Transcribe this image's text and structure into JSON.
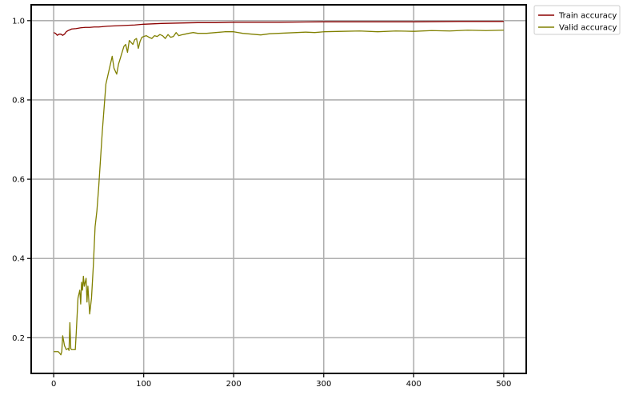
{
  "chart_data": {
    "type": "line",
    "title": "",
    "xlabel": "",
    "ylabel": "",
    "xlim": [
      -25,
      525
    ],
    "ylim": [
      0.11,
      1.04
    ],
    "xticks": [
      0,
      100,
      200,
      300,
      400,
      500
    ],
    "yticks": [
      0.2,
      0.4,
      0.6,
      0.8,
      1.0
    ],
    "xtick_labels": [
      "0",
      "100",
      "200",
      "300",
      "400",
      "500"
    ],
    "ytick_labels": [
      "0.2",
      "0.4",
      "0.6",
      "0.8",
      "1.0"
    ],
    "grid": true,
    "legend_position": "outside-top-right",
    "series": [
      {
        "name": "Train accuracy",
        "color": "#8b0000",
        "x": [
          0,
          2,
          4,
          6,
          8,
          10,
          12,
          14,
          16,
          18,
          20,
          25,
          30,
          35,
          40,
          45,
          50,
          55,
          60,
          70,
          80,
          90,
          100,
          120,
          140,
          160,
          180,
          200,
          250,
          300,
          350,
          400,
          450,
          500
        ],
        "y": [
          0.97,
          0.968,
          0.963,
          0.966,
          0.966,
          0.963,
          0.966,
          0.972,
          0.975,
          0.977,
          0.979,
          0.98,
          0.982,
          0.983,
          0.983,
          0.984,
          0.984,
          0.985,
          0.986,
          0.987,
          0.988,
          0.989,
          0.991,
          0.993,
          0.994,
          0.995,
          0.995,
          0.996,
          0.996,
          0.997,
          0.997,
          0.997,
          0.998,
          0.998
        ]
      },
      {
        "name": "Valid accuracy",
        "color": "#808000",
        "x": [
          0,
          5,
          7,
          8,
          9,
          10,
          12,
          14,
          16,
          17,
          18,
          19,
          20,
          22,
          24,
          25,
          27,
          28,
          29,
          30,
          31,
          32,
          33,
          34,
          35,
          36,
          37,
          38,
          40,
          42,
          44,
          46,
          48,
          50,
          52,
          54,
          56,
          58,
          60,
          62,
          64,
          65,
          67,
          70,
          72,
          74,
          76,
          78,
          80,
          82,
          84,
          86,
          88,
          90,
          92,
          94,
          96,
          98,
          100,
          103,
          106,
          109,
          112,
          115,
          118,
          121,
          124,
          127,
          130,
          133,
          136,
          139,
          142,
          146,
          150,
          155,
          160,
          170,
          180,
          190,
          200,
          210,
          220,
          230,
          240,
          250,
          260,
          270,
          280,
          290,
          300,
          320,
          340,
          360,
          380,
          400,
          420,
          440,
          460,
          480,
          500
        ],
        "y": [
          0.165,
          0.165,
          0.16,
          0.157,
          0.165,
          0.205,
          0.18,
          0.17,
          0.173,
          0.168,
          0.238,
          0.172,
          0.17,
          0.17,
          0.17,
          0.21,
          0.3,
          0.31,
          0.32,
          0.285,
          0.34,
          0.32,
          0.355,
          0.33,
          0.34,
          0.35,
          0.29,
          0.33,
          0.26,
          0.3,
          0.38,
          0.48,
          0.52,
          0.58,
          0.65,
          0.72,
          0.78,
          0.84,
          0.86,
          0.88,
          0.9,
          0.91,
          0.88,
          0.865,
          0.89,
          0.905,
          0.92,
          0.935,
          0.94,
          0.92,
          0.95,
          0.945,
          0.94,
          0.952,
          0.955,
          0.93,
          0.948,
          0.958,
          0.96,
          0.962,
          0.958,
          0.955,
          0.962,
          0.96,
          0.965,
          0.962,
          0.955,
          0.965,
          0.958,
          0.96,
          0.97,
          0.962,
          0.964,
          0.966,
          0.968,
          0.97,
          0.968,
          0.968,
          0.97,
          0.972,
          0.972,
          0.968,
          0.966,
          0.964,
          0.967,
          0.968,
          0.969,
          0.97,
          0.971,
          0.97,
          0.972,
          0.973,
          0.974,
          0.972,
          0.974,
          0.973,
          0.975,
          0.974,
          0.976,
          0.975,
          0.976
        ]
      }
    ]
  }
}
